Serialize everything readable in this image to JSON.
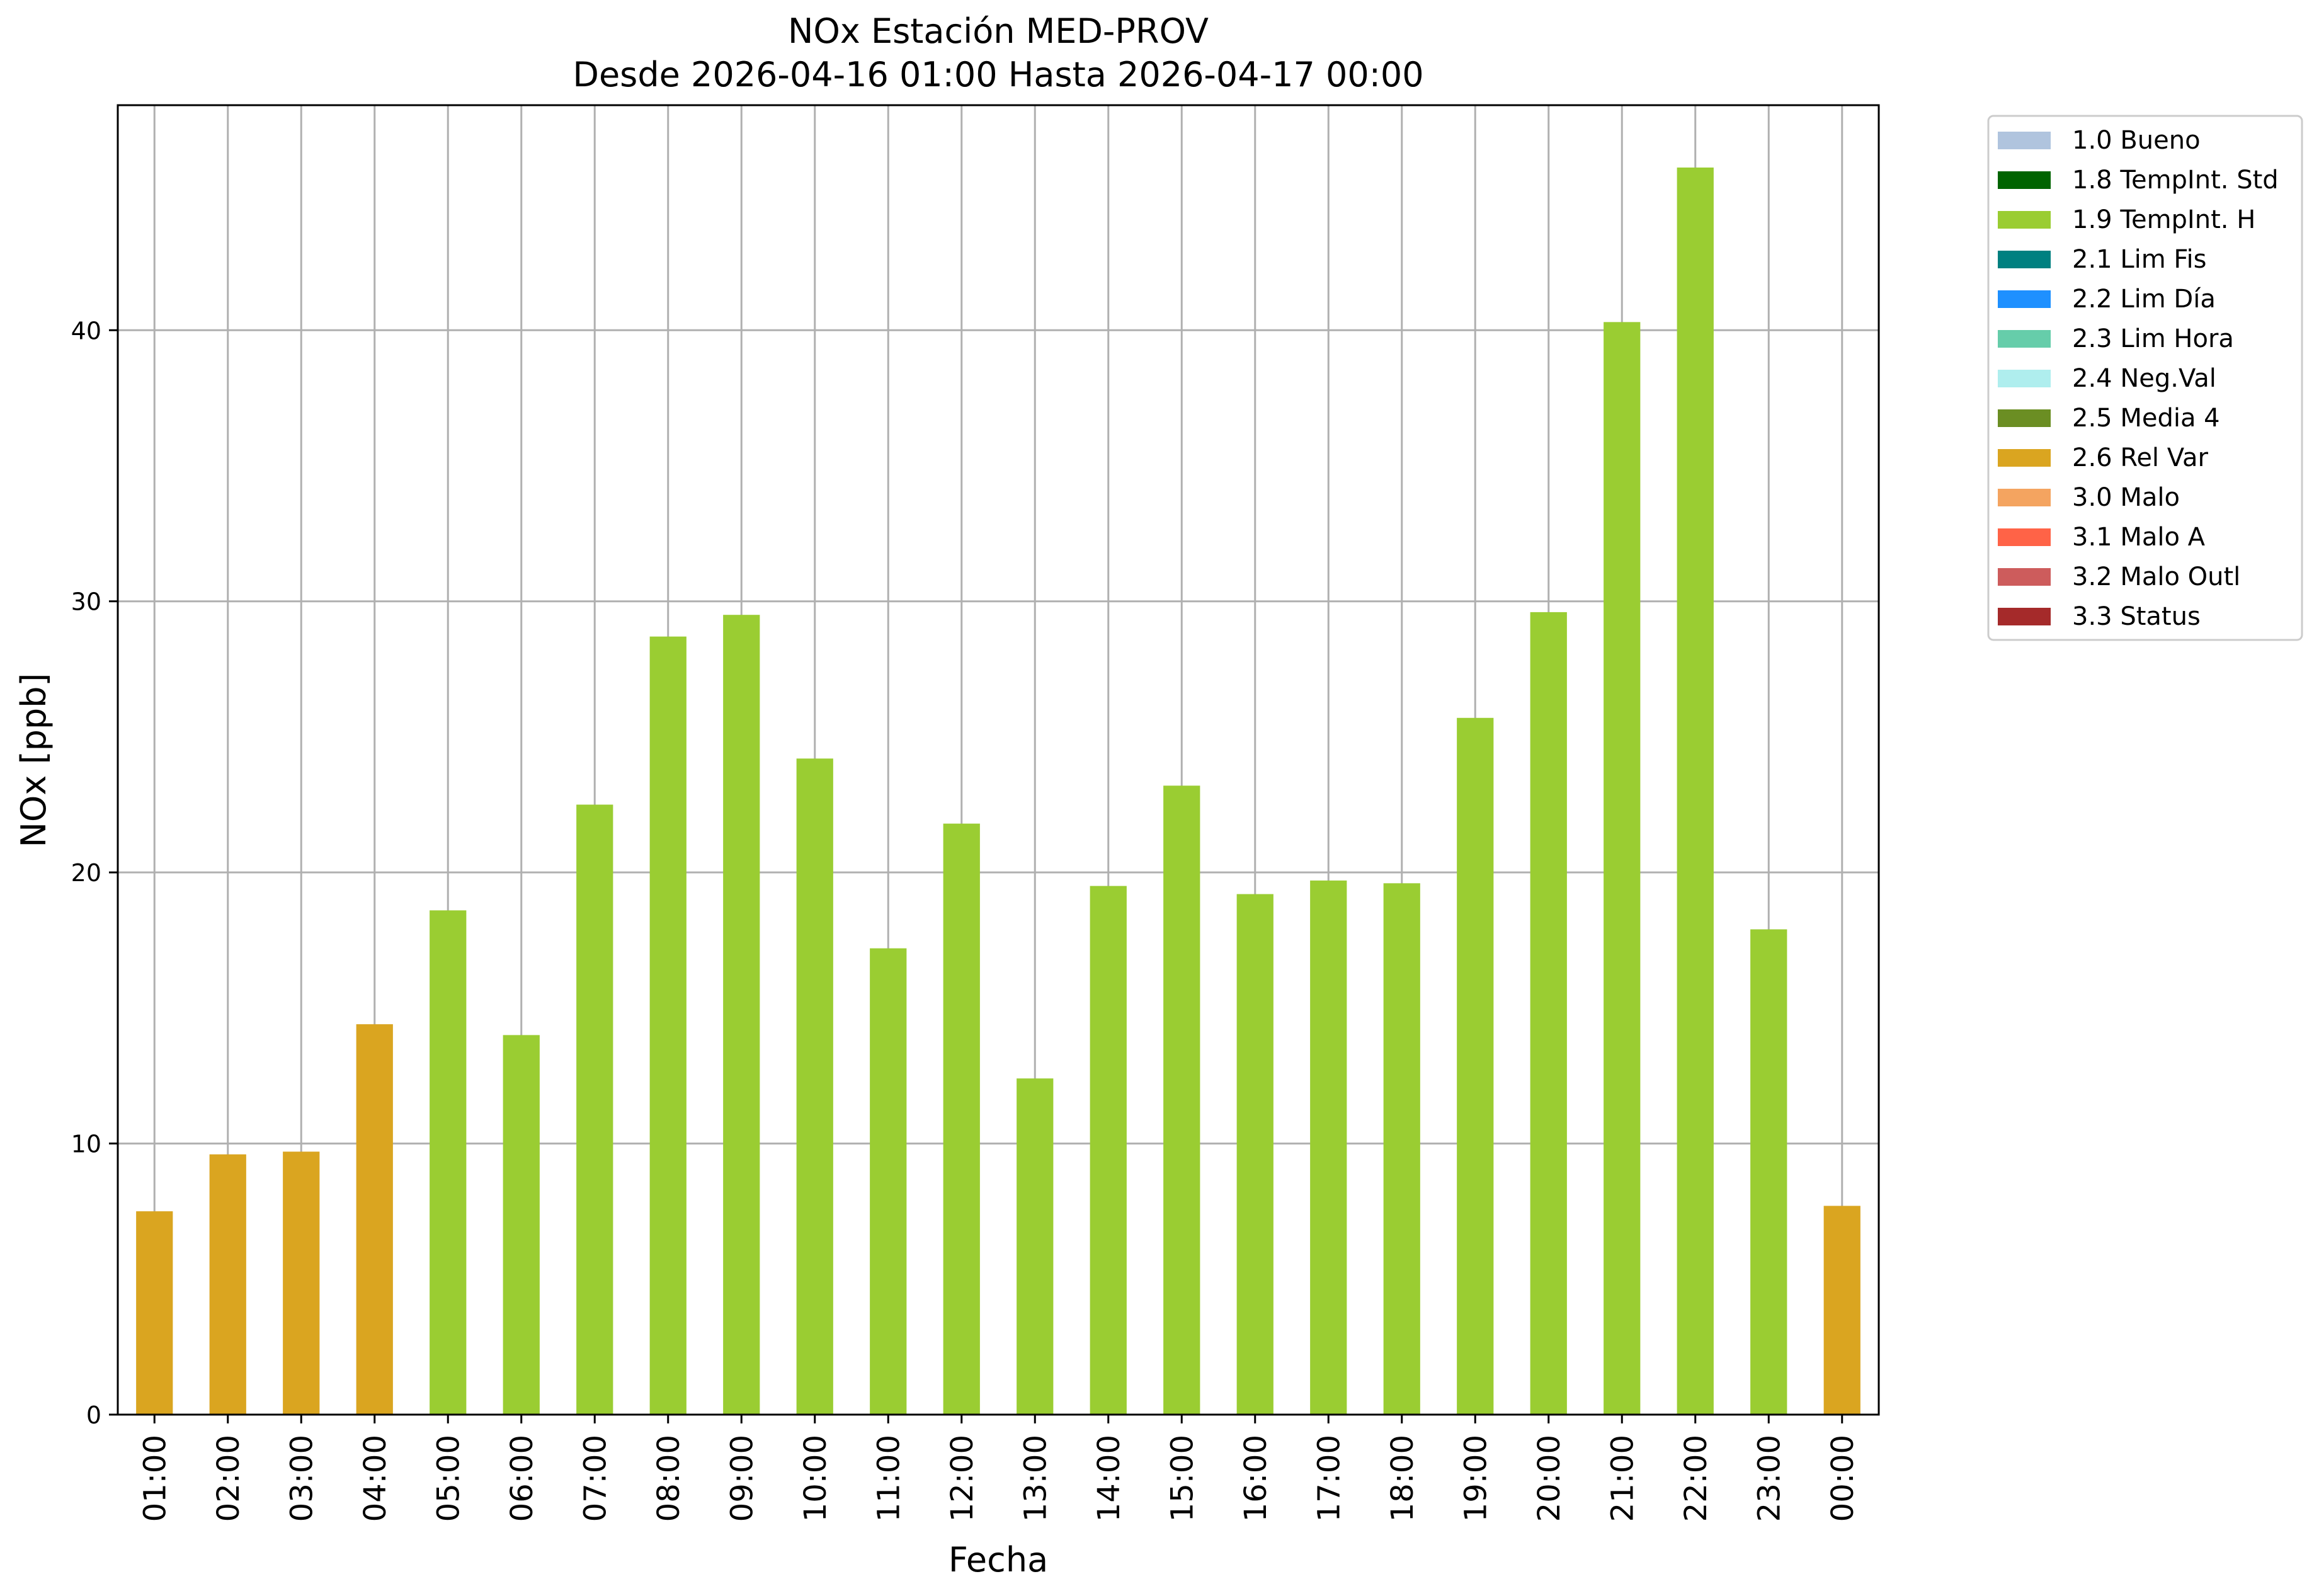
{
  "chart_data": {
    "type": "bar",
    "title": "NOx Estación MED-PROV",
    "subtitle": "Desde 2026-04-16 01:00 Hasta 2026-04-17 00:00",
    "xlabel": "Fecha",
    "ylabel": "NOx [ppb]",
    "ylim": [
      0,
      48.3
    ],
    "yticks": [
      0,
      10,
      20,
      30,
      40
    ],
    "grid": true,
    "legend_position": "outside-top-right",
    "categories": [
      "01:00",
      "02:00",
      "03:00",
      "04:00",
      "05:00",
      "06:00",
      "07:00",
      "08:00",
      "09:00",
      "10:00",
      "11:00",
      "12:00",
      "13:00",
      "14:00",
      "15:00",
      "16:00",
      "17:00",
      "18:00",
      "19:00",
      "20:00",
      "21:00",
      "22:00",
      "23:00",
      "00:00"
    ],
    "values": [
      7.5,
      9.6,
      9.7,
      14.4,
      18.6,
      14.0,
      22.5,
      28.7,
      29.5,
      24.2,
      17.2,
      21.8,
      12.4,
      19.5,
      23.2,
      19.2,
      19.7,
      19.6,
      25.7,
      29.6,
      40.3,
      46.0,
      17.9,
      7.7
    ],
    "flags": [
      "2.6 Rel Var",
      "2.6 Rel Var",
      "2.6 Rel Var",
      "2.6 Rel Var",
      "1.9 TempInt. H",
      "1.9 TempInt. H",
      "1.9 TempInt. H",
      "1.9 TempInt. H",
      "1.9 TempInt. H",
      "1.9 TempInt. H",
      "1.9 TempInt. H",
      "1.9 TempInt. H",
      "1.9 TempInt. H",
      "1.9 TempInt. H",
      "1.9 TempInt. H",
      "1.9 TempInt. H",
      "1.9 TempInt. H",
      "1.9 TempInt. H",
      "1.9 TempInt. H",
      "1.9 TempInt. H",
      "1.9 TempInt. H",
      "1.9 TempInt. H",
      "1.9 TempInt. H",
      "2.6 Rel Var"
    ],
    "legend": [
      {
        "label": "1.0 Bueno",
        "color": "#b0c4de"
      },
      {
        "label": "1.8 TempInt. Std",
        "color": "#006400"
      },
      {
        "label": "1.9 TempInt. H",
        "color": "#9acd32"
      },
      {
        "label": "2.1 Lim Fis",
        "color": "#008080"
      },
      {
        "label": "2.2 Lim Día",
        "color": "#1e90ff"
      },
      {
        "label": "2.3 Lim Hora",
        "color": "#66cdaa"
      },
      {
        "label": "2.4 Neg.Val",
        "color": "#afeeee"
      },
      {
        "label": "2.5 Media 4",
        "color": "#6b8e23"
      },
      {
        "label": "2.6 Rel Var",
        "color": "#daa520"
      },
      {
        "label": "3.0 Malo",
        "color": "#f4a460"
      },
      {
        "label": "3.1 Malo A",
        "color": "#ff6347"
      },
      {
        "label": "3.2 Malo Outl",
        "color": "#cd5c5c"
      },
      {
        "label": "3.3 Status",
        "color": "#a52a2a"
      }
    ]
  }
}
